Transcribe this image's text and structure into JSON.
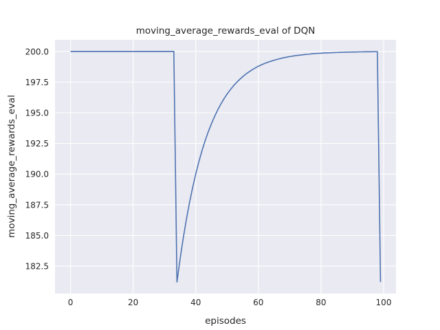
{
  "chart_data": {
    "type": "line",
    "title": "moving_average_rewards_eval of DQN",
    "xlabel": "episodes",
    "ylabel": "moving_average_rewards_eval",
    "xlim": [
      -4.95,
      103.95
    ],
    "ylim": [
      180.26,
      200.94
    ],
    "xticks": [
      0,
      20,
      40,
      60,
      80,
      100
    ],
    "xtick_labels": [
      "0",
      "20",
      "40",
      "60",
      "80",
      "100"
    ],
    "yticks": [
      182.5,
      185.0,
      187.5,
      190.0,
      192.5,
      195.0,
      197.5,
      200.0
    ],
    "ytick_labels": [
      "182.5",
      "185.0",
      "187.5",
      "190.0",
      "192.5",
      "195.0",
      "197.5",
      "200.0"
    ],
    "grid": true,
    "style": {
      "background": "#EAEAF2",
      "grid_color": "#FFFFFF",
      "line_color": "#4C72B0"
    },
    "series": [
      {
        "x": [
          0,
          1,
          2,
          3,
          4,
          5,
          6,
          7,
          8,
          9,
          10,
          11,
          12,
          13,
          14,
          15,
          16,
          17,
          18,
          19,
          20,
          21,
          22,
          23,
          24,
          25,
          26,
          27,
          28,
          29,
          30,
          31,
          32,
          33,
          34,
          35,
          36,
          37,
          38,
          39,
          40,
          41,
          42,
          43,
          44,
          45,
          46,
          47,
          48,
          49,
          50,
          51,
          52,
          53,
          54,
          55,
          56,
          57,
          58,
          59,
          60,
          61,
          62,
          63,
          64,
          65,
          66,
          67,
          68,
          69,
          70,
          71,
          72,
          73,
          74,
          75,
          76,
          77,
          78,
          79,
          80,
          81,
          82,
          83,
          84,
          85,
          86,
          87,
          88,
          89,
          90,
          91,
          92,
          93,
          94,
          95,
          96,
          97,
          98,
          99
        ],
        "y": [
          200,
          200,
          200,
          200,
          200,
          200,
          200,
          200,
          200,
          200,
          200,
          200,
          200,
          200,
          200,
          200,
          200,
          200,
          200,
          200,
          200,
          200,
          200,
          200,
          200,
          200,
          200,
          200,
          200,
          200,
          200,
          200,
          200,
          200,
          181.2,
          183.08,
          184.77,
          186.29,
          187.67,
          188.9,
          190.01,
          191.01,
          191.91,
          192.72,
          193.45,
          194.1,
          194.69,
          195.22,
          195.7,
          196.13,
          196.52,
          196.86,
          197.18,
          197.46,
          197.71,
          197.94,
          198.15,
          198.33,
          198.5,
          198.65,
          198.79,
          198.91,
          199.02,
          199.11,
          199.2,
          199.28,
          199.35,
          199.42,
          199.48,
          199.53,
          199.58,
          199.62,
          199.66,
          199.69,
          199.72,
          199.75,
          199.77,
          199.8,
          199.82,
          199.84,
          199.85,
          199.87,
          199.88,
          199.89,
          199.9,
          199.91,
          199.92,
          199.93,
          199.94,
          199.94,
          199.95,
          199.95,
          199.96,
          199.96,
          199.97,
          199.97,
          199.97,
          199.98,
          199.98,
          181.2
        ]
      }
    ]
  }
}
